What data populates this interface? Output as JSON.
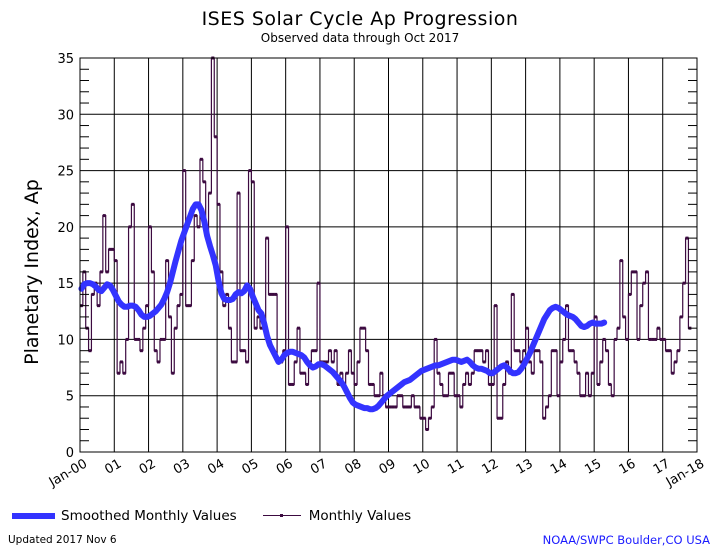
{
  "header": {
    "title": "ISES Solar Cycle Ap Progression",
    "subtitle": "Observed data through Oct 2017"
  },
  "legend": {
    "smoothed_label": "Smoothed Monthly Values",
    "monthly_label": "Monthly Values"
  },
  "footer": {
    "updated": "Updated 2017 Nov  6",
    "credit": "NOAA/SWPC Boulder,CO USA"
  },
  "colors": {
    "smoothed": "#3333ff",
    "monthly": "#3c0a40",
    "grid": "#000000",
    "credit": "#1a1aff"
  },
  "chart_data": {
    "type": "line",
    "title": "ISES Solar Cycle Ap Progression",
    "subtitle": "Observed data through Oct 2017",
    "xlabel": "",
    "ylabel": "Planetary Index, Ap",
    "xlim": [
      2000,
      2018
    ],
    "ylim": [
      0,
      35
    ],
    "grid": true,
    "legend_position": "bottom",
    "x_tick_labels": [
      "Jan-00",
      "01",
      "02",
      "03",
      "04",
      "05",
      "06",
      "07",
      "08",
      "09",
      "10",
      "11",
      "12",
      "13",
      "14",
      "15",
      "16",
      "17",
      "Jan-18"
    ],
    "y_ticks": [
      0,
      5,
      10,
      15,
      20,
      25,
      30,
      35
    ],
    "start": "2000-01",
    "series": [
      {
        "name": "Monthly Values",
        "style": "step-with-markers",
        "values": [
          13,
          16,
          11,
          9,
          14,
          15,
          13,
          16,
          21,
          16,
          18,
          18,
          17,
          7,
          8,
          7,
          10,
          20,
          22,
          10,
          10,
          9,
          11,
          13,
          20,
          16,
          9,
          8,
          10,
          10,
          17,
          12,
          7,
          11,
          13,
          14,
          25,
          13,
          13,
          17,
          21,
          20,
          26,
          24,
          19,
          23,
          35,
          28,
          22,
          16,
          13,
          14,
          11,
          8,
          8,
          23,
          9,
          9,
          8,
          25,
          24,
          11,
          12,
          11,
          11,
          19,
          14,
          14,
          14,
          8,
          8,
          9,
          20,
          6,
          6,
          8,
          11,
          7,
          7,
          6,
          8,
          9,
          9,
          15,
          8,
          8,
          8,
          9,
          8,
          9,
          6,
          7,
          6,
          7,
          9,
          7,
          6,
          8,
          11,
          11,
          9,
          6,
          6,
          5,
          5,
          7,
          5,
          4,
          4,
          4,
          4,
          5,
          5,
          4,
          4,
          4,
          5,
          4,
          4,
          3,
          3,
          2,
          3,
          4,
          10,
          7,
          6,
          5,
          5,
          7,
          7,
          5,
          5,
          4,
          6,
          7,
          6,
          7,
          9,
          9,
          9,
          8,
          9,
          6,
          6,
          13,
          3,
          3,
          6,
          8,
          7,
          14,
          9,
          9,
          8,
          9,
          11,
          8,
          7,
          9,
          9,
          8,
          3,
          4,
          5,
          9,
          9,
          5,
          8,
          10,
          13,
          9,
          9,
          8,
          7,
          5,
          5,
          7,
          5,
          7,
          12,
          6,
          8,
          10,
          9,
          6,
          5,
          10,
          11,
          17,
          12,
          10,
          14,
          16,
          16,
          10,
          13,
          15,
          16,
          10,
          10,
          10,
          11,
          10,
          10,
          9,
          9,
          7,
          8,
          9,
          12,
          15,
          19,
          11
        ]
      },
      {
        "name": "Smoothed Monthly Values",
        "style": "thick-line",
        "values": [
          14.5,
          14.9,
          15.0,
          15.0,
          14.9,
          14.7,
          14.4,
          14.3,
          14.6,
          14.9,
          14.8,
          14.4,
          13.9,
          13.4,
          13.1,
          12.9,
          12.9,
          13.0,
          13.0,
          12.9,
          12.6,
          12.2,
          12.0,
          12.0,
          12.1,
          12.3,
          12.5,
          12.8,
          13.1,
          13.6,
          14.2,
          15.0,
          16.0,
          17.0,
          17.9,
          18.8,
          19.5,
          20.2,
          20.9,
          21.6,
          22.0,
          22.0,
          21.5,
          20.5,
          19.2,
          18.3,
          17.5,
          16.6,
          15.2,
          14.1,
          13.6,
          13.5,
          13.5,
          13.6,
          14.0,
          14.2,
          14.1,
          14.3,
          14.8,
          14.5,
          13.8,
          13.2,
          12.6,
          12.3,
          11.4,
          10.3,
          9.5,
          9.0,
          8.5,
          8.0,
          8.2,
          8.6,
          8.8,
          8.9,
          8.9,
          8.8,
          8.7,
          8.6,
          8.4,
          8.0,
          7.7,
          7.5,
          7.6,
          7.8,
          7.8,
          7.7,
          7.5,
          7.3,
          7.1,
          6.8,
          6.5,
          6.2,
          5.8,
          5.3,
          4.8,
          4.4,
          4.2,
          4.1,
          4.0,
          3.9,
          3.9,
          3.8,
          3.8,
          3.9,
          4.1,
          4.4,
          4.7,
          5.0,
          5.2,
          5.4,
          5.6,
          5.8,
          6.0,
          6.2,
          6.3,
          6.4,
          6.6,
          6.8,
          7.0,
          7.2,
          7.3,
          7.4,
          7.5,
          7.6,
          7.7,
          7.7,
          7.8,
          7.9,
          8.0,
          8.1,
          8.2,
          8.2,
          8.1,
          8.0,
          8.1,
          8.2,
          8.0,
          7.7,
          7.5,
          7.4,
          7.4,
          7.3,
          7.2,
          7.0,
          7.0,
          7.2,
          7.4,
          7.6,
          7.7,
          7.5,
          7.2,
          7.0,
          7.0,
          7.1,
          7.4,
          7.8,
          8.3,
          8.8,
          9.4,
          10.0,
          10.6,
          11.2,
          11.8,
          12.2,
          12.6,
          12.8,
          12.9,
          12.8,
          12.6,
          12.4,
          12.2,
          12.1,
          12.0,
          11.8,
          11.5,
          11.2,
          11.1,
          11.2,
          11.4,
          11.5,
          11.4,
          11.4,
          11.4,
          11.5
        ]
      }
    ]
  }
}
